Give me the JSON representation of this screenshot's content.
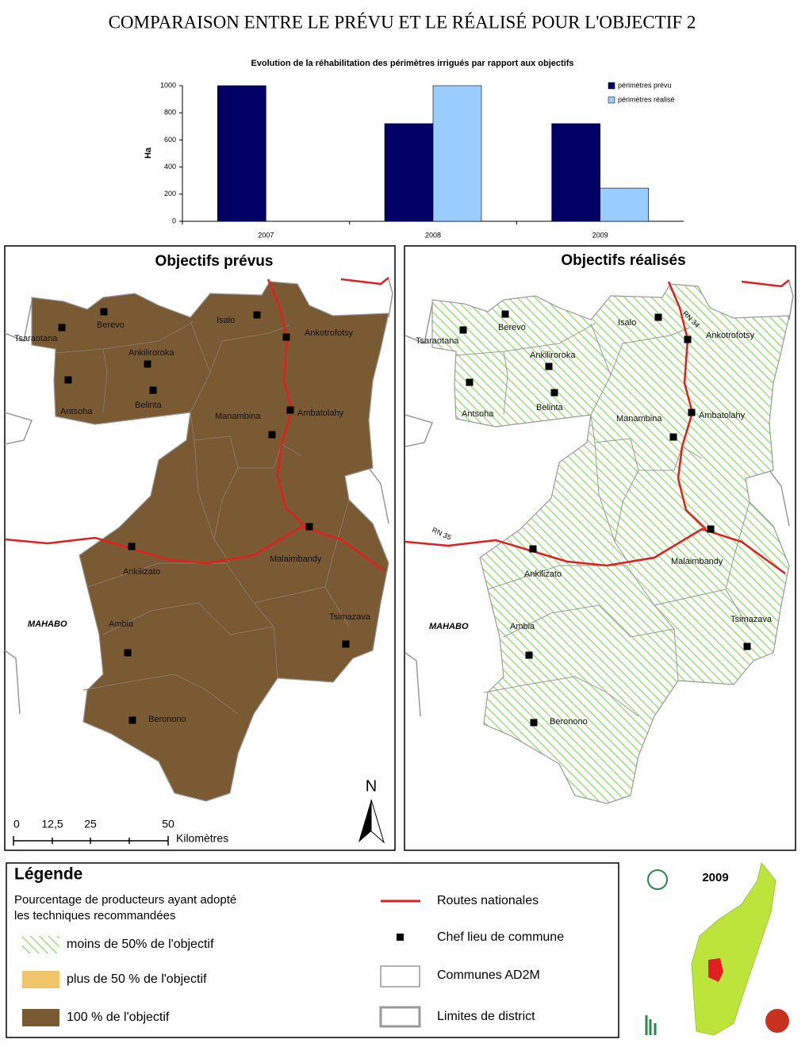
{
  "title": "COMPARAISON ENTRE LE PRÉVU ET LE RÉALISÉ POUR L'OBJECTIF 2",
  "chart_data": {
    "type": "bar",
    "title": "Evolution de la réhabilitation des périmètres irrigués par rapport aux objectifs",
    "y_label": "Ha",
    "categories": [
      "2007",
      "2008",
      "2009"
    ],
    "series": [
      {
        "name": "périmètres prévu",
        "color": "#000066",
        "values": [
          1000,
          720,
          720
        ]
      },
      {
        "name": "périmètres réalisé",
        "color": "#99ccff",
        "values": [
          0,
          1000,
          245
        ]
      }
    ],
    "ylim": [
      0,
      1000
    ],
    "yticks": [
      0,
      200,
      400,
      600,
      800,
      1000
    ],
    "legend": "top-right"
  },
  "maps": [
    {
      "title": "Objectifs prévus"
    },
    {
      "title": "Objectifs réalisés",
      "roads": [
        "RN 34",
        "RN 35"
      ]
    }
  ],
  "communes": [
    "Tsaraotana",
    "Berevo",
    "Isalo",
    "Ankotrofotsy",
    "Ankiliroroka",
    "Antsoha",
    "Belinta",
    "Manambina",
    "Ambatolahy",
    "Malaimbandy",
    "Ankilizato",
    "Ambia",
    "Tsimazava",
    "Beronono"
  ],
  "district": "MAHABO",
  "north": "N",
  "scale": {
    "ticks": [
      "0",
      "12,5",
      "25",
      "50"
    ],
    "unit": "Kilomètres"
  },
  "legend": {
    "title": "Légende",
    "subtitle": [
      "Pourcentage de producteurs ayant adopté",
      "les techniques recommandées"
    ],
    "classes": [
      "moins de 50% de l'objectif",
      "plus de 50 % de l'objectif",
      "100 % de l'objectif"
    ],
    "symbols": [
      "Routes nationales",
      "Chef lieu de commune",
      "Communes AD2M",
      "Limites de district"
    ]
  },
  "inset": {
    "year": "2009"
  }
}
